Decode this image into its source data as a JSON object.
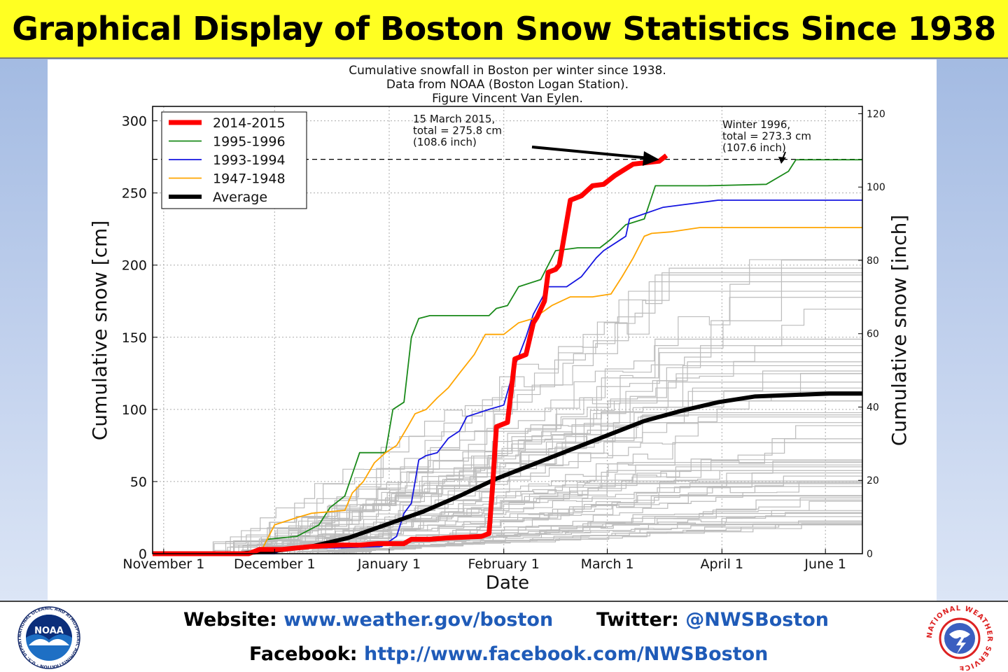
{
  "banner": {
    "title": "Graphical Display of Boston Snow Statistics Since 1938"
  },
  "chart_data": {
    "type": "line",
    "title_lines": [
      "Cumulative snowfall in Boston per winter since 1938.",
      "Data from NOAA (Boston Logan Station).",
      "Figure Vincent Van Eylen."
    ],
    "xlabel": "Date",
    "ylabel": "Cumulative snow [cm]",
    "ylabel_right": "Cumulative snow [inch]",
    "x_ticks": [
      {
        "label": "November 1",
        "day": 0
      },
      {
        "label": "December 1",
        "day": 30
      },
      {
        "label": "January 1",
        "day": 61
      },
      {
        "label": "February 1",
        "day": 92
      },
      {
        "label": "March 1",
        "day": 120
      },
      {
        "label": "April 1",
        "day": 151
      },
      {
        "label": "June 1",
        "day": 179
      }
    ],
    "xlim": [
      -3,
      189
    ],
    "ylim": [
      0,
      310
    ],
    "y_ticks": [
      0,
      50,
      100,
      150,
      200,
      250,
      300
    ],
    "ylim_right": [
      0,
      122
    ],
    "y_ticks_right": [
      0,
      20,
      40,
      60,
      80,
      100,
      120
    ],
    "grid": true,
    "legend_position": "top-left",
    "record_level_cm": 273.3,
    "annotations": [
      {
        "lines": [
          "15 March 2015,",
          " total = 275.8 cm",
          " (108.6 inch)"
        ]
      },
      {
        "lines": [
          "Winter 1996,",
          " total = 273.3 cm",
          " (107.6 inch)"
        ]
      }
    ],
    "series": [
      {
        "name": "2014-2015",
        "color": "#ff0000",
        "points": [
          [
            -3,
            0
          ],
          [
            23,
            0
          ],
          [
            26,
            3
          ],
          [
            32,
            3
          ],
          [
            40,
            5
          ],
          [
            48,
            6
          ],
          [
            53,
            6
          ],
          [
            58,
            7
          ],
          [
            65,
            7
          ],
          [
            67,
            10
          ],
          [
            72,
            10
          ],
          [
            77,
            11
          ],
          [
            86,
            12
          ],
          [
            88,
            14
          ],
          [
            89,
            48
          ],
          [
            90,
            88
          ],
          [
            93,
            91
          ],
          [
            95,
            135
          ],
          [
            98,
            138
          ],
          [
            100,
            160
          ],
          [
            101,
            164
          ],
          [
            103,
            175
          ],
          [
            104,
            195
          ],
          [
            106,
            197
          ],
          [
            107,
            200
          ],
          [
            110,
            245
          ],
          [
            113,
            248
          ],
          [
            116,
            255
          ],
          [
            119,
            256
          ],
          [
            122,
            262
          ],
          [
            127,
            270
          ],
          [
            134,
            272
          ],
          [
            136,
            276
          ]
        ]
      },
      {
        "name": "1995-1996",
        "color": "#1a8a1a",
        "points": [
          [
            -3,
            0
          ],
          [
            26,
            0
          ],
          [
            28,
            10
          ],
          [
            36,
            12
          ],
          [
            42,
            20
          ],
          [
            45,
            32
          ],
          [
            49,
            40
          ],
          [
            51,
            55
          ],
          [
            53,
            70
          ],
          [
            60,
            70
          ],
          [
            62,
            100
          ],
          [
            65,
            105
          ],
          [
            67,
            150
          ],
          [
            69,
            163
          ],
          [
            72,
            165
          ],
          [
            88,
            165
          ],
          [
            90,
            170
          ],
          [
            93,
            172
          ],
          [
            96,
            185
          ],
          [
            102,
            190
          ],
          [
            106,
            210
          ],
          [
            112,
            212
          ],
          [
            118,
            212
          ],
          [
            121,
            218
          ],
          [
            125,
            228
          ],
          [
            130,
            232
          ],
          [
            133,
            255
          ],
          [
            147,
            255
          ],
          [
            163,
            256
          ],
          [
            169,
            265
          ],
          [
            171,
            273
          ],
          [
            189,
            273
          ]
        ]
      },
      {
        "name": "1993-1994",
        "color": "#1515e0",
        "points": [
          [
            -3,
            0
          ],
          [
            30,
            0
          ],
          [
            33,
            4
          ],
          [
            47,
            4
          ],
          [
            59,
            5
          ],
          [
            63,
            12
          ],
          [
            65,
            28
          ],
          [
            67,
            35
          ],
          [
            69,
            65
          ],
          [
            71,
            68
          ],
          [
            74,
            70
          ],
          [
            77,
            80
          ],
          [
            80,
            85
          ],
          [
            82,
            95
          ],
          [
            88,
            100
          ],
          [
            92,
            103
          ],
          [
            95,
            130
          ],
          [
            98,
            150
          ],
          [
            100,
            166
          ],
          [
            104,
            185
          ],
          [
            109,
            185
          ],
          [
            113,
            192
          ],
          [
            117,
            205
          ],
          [
            119,
            210
          ],
          [
            125,
            220
          ],
          [
            126,
            232
          ],
          [
            135,
            240
          ],
          [
            141,
            242
          ],
          [
            150,
            245
          ],
          [
            189,
            245
          ]
        ]
      },
      {
        "name": "1947-1948",
        "color": "#ffa500",
        "points": [
          [
            -3,
            0
          ],
          [
            26,
            0
          ],
          [
            30,
            20
          ],
          [
            36,
            25
          ],
          [
            40,
            28
          ],
          [
            49,
            30
          ],
          [
            51,
            42
          ],
          [
            54,
            50
          ],
          [
            57,
            63
          ],
          [
            60,
            70
          ],
          [
            63,
            75
          ],
          [
            66,
            88
          ],
          [
            68,
            97
          ],
          [
            71,
            100
          ],
          [
            74,
            108
          ],
          [
            77,
            115
          ],
          [
            80,
            125
          ],
          [
            84,
            138
          ],
          [
            87,
            152
          ],
          [
            92,
            152
          ],
          [
            96,
            160
          ],
          [
            100,
            163
          ],
          [
            105,
            172
          ],
          [
            110,
            178
          ],
          [
            116,
            178
          ],
          [
            121,
            180
          ],
          [
            124,
            192
          ],
          [
            127,
            205
          ],
          [
            130,
            220
          ],
          [
            132,
            222
          ],
          [
            137,
            223
          ],
          [
            145,
            226
          ],
          [
            189,
            226
          ]
        ]
      },
      {
        "name": "Average",
        "color": "#000000",
        "points": [
          [
            -3,
            0
          ],
          [
            20,
            0
          ],
          [
            30,
            2
          ],
          [
            40,
            5
          ],
          [
            50,
            11
          ],
          [
            60,
            20
          ],
          [
            70,
            29
          ],
          [
            80,
            40
          ],
          [
            90,
            52
          ],
          [
            100,
            62
          ],
          [
            110,
            72
          ],
          [
            120,
            82
          ],
          [
            130,
            92
          ],
          [
            140,
            99
          ],
          [
            150,
            105
          ],
          [
            160,
            109
          ],
          [
            170,
            110
          ],
          [
            180,
            111
          ],
          [
            189,
            111
          ]
        ]
      }
    ],
    "other_winters_color": "#bcbcbc"
  },
  "footer": {
    "website_label": "Website:",
    "website_url": "www.weather.gov/boston",
    "twitter_label": "Twitter:",
    "twitter_handle": "@NWSBoston",
    "facebook_label": "Facebook:",
    "facebook_url": "http://www.facebook.com/NWSBoston"
  },
  "logos": {
    "noaa_text": "NOAA",
    "noaa_ring_text": "NATIONAL OCEANIC AND ATMOSPHERIC ADMINISTRATION · U.S. DEPARTMENT OF COMMERCE",
    "nws_ring_text": "NATIONAL WEATHER SERVICE"
  }
}
